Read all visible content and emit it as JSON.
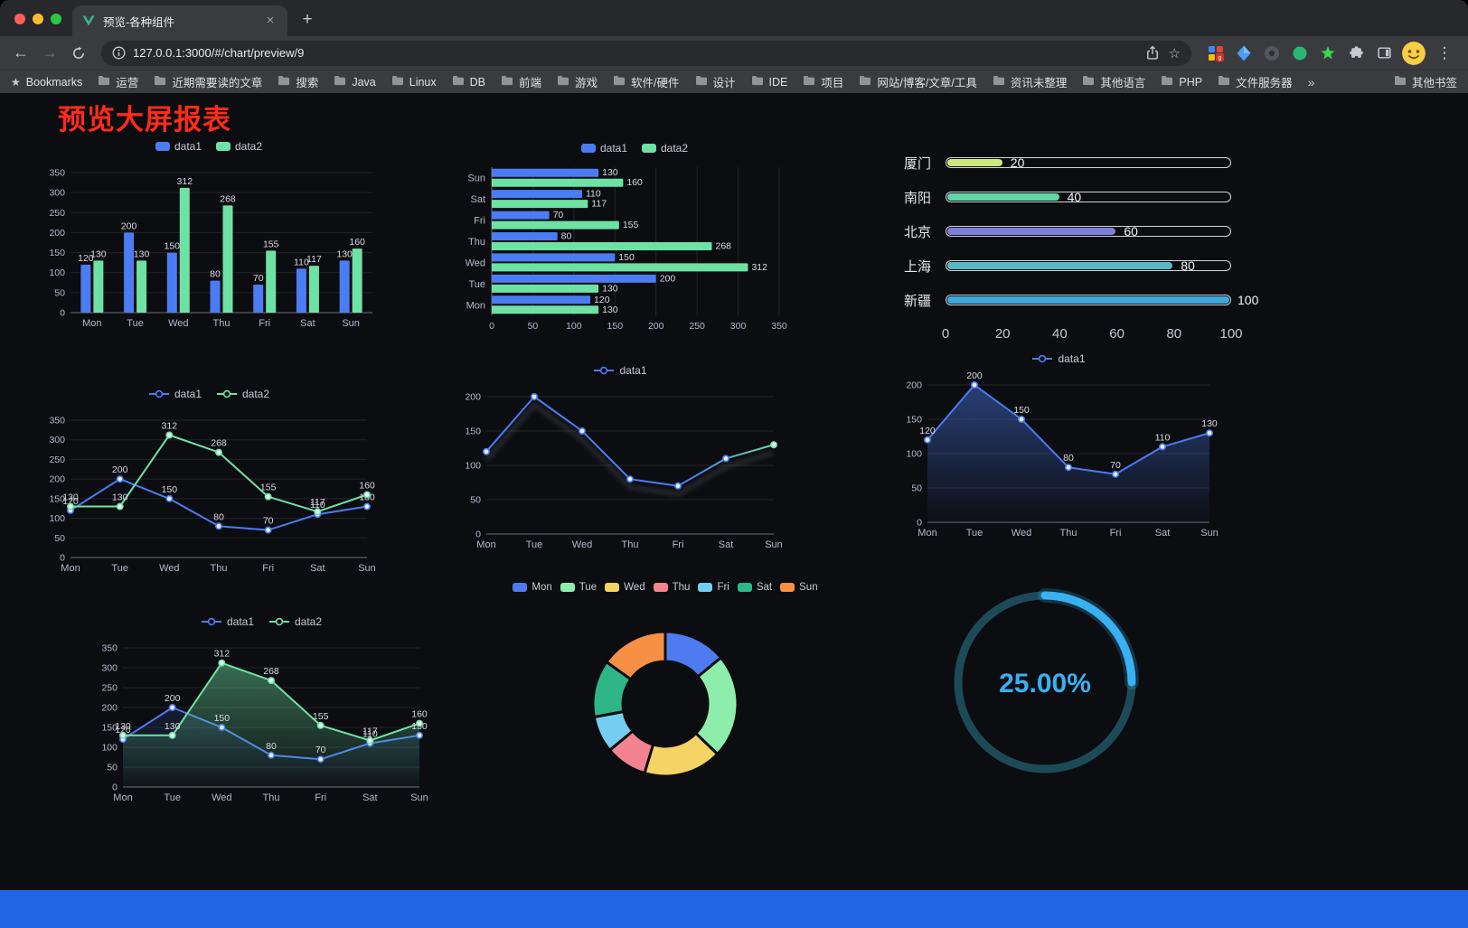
{
  "browser": {
    "tab_title": "预览-各种组件",
    "url": "127.0.0.1:3000/#/chart/preview/9",
    "bookmarks_label": "Bookmarks",
    "bookmark_folders": [
      "运营",
      "近期需要读的文章",
      "搜索",
      "Java",
      "Linux",
      "DB",
      "前端",
      "游戏",
      "软件/硬件",
      "设计",
      "IDE",
      "项目",
      "网站/博客/文章/工具",
      "资讯未整理",
      "其他语言",
      "PHP",
      "文件服务器"
    ],
    "other_bookmarks_label": "其他书签",
    "icons": {
      "back": "←",
      "forward": "→",
      "new_tab": "+",
      "close_tab": "×",
      "menu": "⋮",
      "overflow": "»",
      "bookmark_star": "☆",
      "bookmarks_bar_star": "★"
    }
  },
  "page": {
    "title": "预览大屏报表",
    "title_color": "#fa2c19",
    "background": "#0c0d11",
    "footer_color": "#2264e3"
  },
  "chart_data": [
    {
      "id": "bar-vertical",
      "type": "bar",
      "categories": [
        "Mon",
        "Tue",
        "Wed",
        "Thu",
        "Fri",
        "Sat",
        "Sun"
      ],
      "series": [
        {
          "name": "data1",
          "color": "#4b7cf3",
          "values": [
            120,
            200,
            150,
            80,
            70,
            110,
            130
          ]
        },
        {
          "name": "data2",
          "color": "#6ee2a4",
          "values": [
            130,
            130,
            312,
            268,
            155,
            117,
            160
          ]
        }
      ],
      "ylim": [
        0,
        350
      ],
      "ytick_step": 50,
      "legend_position": "top",
      "grid": true
    },
    {
      "id": "bar-horizontal",
      "type": "hbar",
      "categories": [
        "Mon",
        "Tue",
        "Wed",
        "Thu",
        "Fri",
        "Sat",
        "Sun"
      ],
      "categories_display_order_top_to_bottom": [
        "Sun",
        "Sat",
        "Fri",
        "Thu",
        "Wed",
        "Tue",
        "Mon"
      ],
      "series": [
        {
          "name": "data1",
          "color": "#4b7cf3",
          "values": [
            120,
            200,
            150,
            80,
            70,
            110,
            130
          ]
        },
        {
          "name": "data2",
          "color": "#6ee2a4",
          "values": [
            130,
            130,
            312,
            268,
            155,
            117,
            160
          ]
        }
      ],
      "xlim": [
        0,
        350
      ],
      "xtick_step": 50,
      "legend_position": "top",
      "grid": true
    },
    {
      "id": "progress-bars",
      "type": "bar",
      "subtype": "progress",
      "max": 100,
      "xticks": [
        0,
        20,
        40,
        60,
        80,
        100
      ],
      "rows": [
        {
          "label": "厦门",
          "value": 20,
          "color": "#cde87f"
        },
        {
          "label": "南阳",
          "value": 40,
          "color": "#5fd6a5"
        },
        {
          "label": "北京",
          "value": 60,
          "color": "#7e7edb"
        },
        {
          "label": "上海",
          "value": 80,
          "color": "#58b7c6"
        },
        {
          "label": "新疆",
          "value": 100,
          "color": "#3fa7dc"
        }
      ]
    },
    {
      "id": "line-two-series",
      "type": "line",
      "categories": [
        "Mon",
        "Tue",
        "Wed",
        "Thu",
        "Fri",
        "Sat",
        "Sun"
      ],
      "series": [
        {
          "name": "data1",
          "color": "#4b7cf3",
          "values": [
            120,
            200,
            150,
            80,
            70,
            110,
            130
          ]
        },
        {
          "name": "data2",
          "color": "#6ee2a4",
          "values": [
            130,
            130,
            312,
            268,
            155,
            117,
            160
          ]
        }
      ],
      "ylim": [
        0,
        350
      ],
      "ytick_step": 50,
      "point_labels": true,
      "legend_position": "top"
    },
    {
      "id": "line-gradient",
      "type": "line",
      "categories": [
        "Mon",
        "Tue",
        "Wed",
        "Thu",
        "Fri",
        "Sat",
        "Sun"
      ],
      "series": [
        {
          "name": "data1",
          "color": "#4b7cf3",
          "color_end": "#6ee2a4",
          "values": [
            120,
            200,
            150,
            80,
            70,
            110,
            130
          ],
          "gradient_stroke": true
        }
      ],
      "ylim": [
        0,
        200
      ],
      "ytick_step": 50,
      "point_labels": false,
      "echo_shadow": true,
      "legend_position": "top"
    },
    {
      "id": "line-area",
      "type": "area",
      "categories": [
        "Mon",
        "Tue",
        "Wed",
        "Thu",
        "Fri",
        "Sat",
        "Sun"
      ],
      "series": [
        {
          "name": "data1",
          "color": "#4b7cf3",
          "values": [
            120,
            200,
            150,
            80,
            70,
            110,
            130
          ],
          "area": true,
          "area_opacity": 0.45
        }
      ],
      "ylim": [
        0,
        200
      ],
      "ytick_step": 50,
      "point_labels": true,
      "legend_position": "top"
    },
    {
      "id": "line-two-area",
      "type": "area",
      "categories": [
        "Mon",
        "Tue",
        "Wed",
        "Thu",
        "Fri",
        "Sat",
        "Sun"
      ],
      "series": [
        {
          "name": "data1",
          "color": "#4b7cf3",
          "values": [
            120,
            200,
            150,
            80,
            70,
            110,
            130
          ],
          "area": true,
          "area_opacity": 0.15
        },
        {
          "name": "data2",
          "color": "#6ee2a4",
          "values": [
            130,
            130,
            312,
            268,
            155,
            117,
            160
          ],
          "area": true,
          "area_opacity": 0.45
        }
      ],
      "ylim": [
        0,
        350
      ],
      "ytick_step": 50,
      "point_labels": true,
      "legend_position": "top"
    },
    {
      "id": "donut-week",
      "type": "pie",
      "subtype": "donut",
      "legend_position": "top",
      "items": [
        {
          "name": "Mon",
          "value": 120,
          "color": "#4e7cf0"
        },
        {
          "name": "Tue",
          "value": 200,
          "color": "#8deeab"
        },
        {
          "name": "Wed",
          "value": 150,
          "color": "#f5d364"
        },
        {
          "name": "Thu",
          "value": 80,
          "color": "#f2838f"
        },
        {
          "name": "Fri",
          "value": 70,
          "color": "#74cef2"
        },
        {
          "name": "Sat",
          "value": 110,
          "color": "#2eb588"
        },
        {
          "name": "Sun",
          "value": 130,
          "color": "#f78f45"
        }
      ]
    },
    {
      "id": "gauge-percent",
      "type": "gauge",
      "value": 25,
      "max": 100,
      "label": "25.00%",
      "color": "#38b1f2",
      "track_color": "#1d4a57"
    }
  ]
}
